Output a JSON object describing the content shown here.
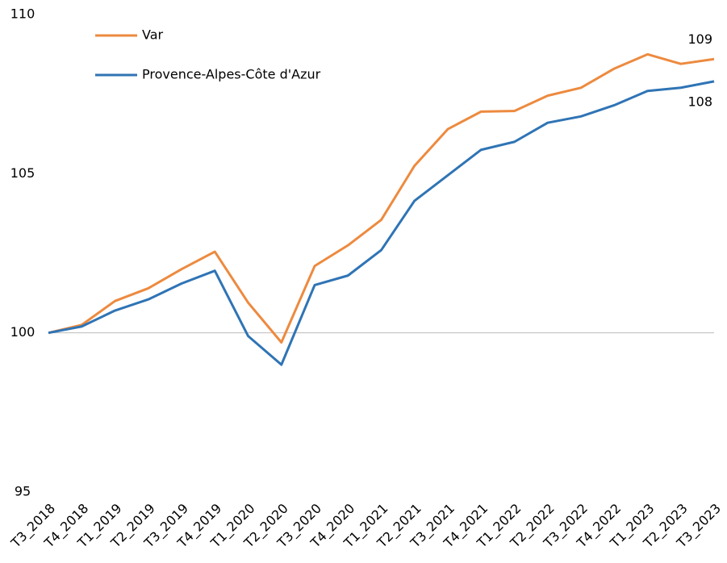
{
  "chart_data": {
    "type": "line",
    "categories": [
      "T3_2018",
      "T4_2018",
      "T1_2019",
      "T2_2019",
      "T3_2019",
      "T4_2019",
      "T1_2020",
      "T2_2020",
      "T3_2020",
      "T4_2020",
      "T1_2021",
      "T2_2021",
      "T3_2021",
      "T4_2021",
      "T1_2022",
      "T2_2022",
      "T3_2022",
      "T4_2022",
      "T1_2023",
      "T2_2023",
      "T3_2023"
    ],
    "series": [
      {
        "name": "Var",
        "color": "#ed8a3f",
        "values": [
          100,
          100.25,
          101.0,
          101.4,
          102.0,
          102.55,
          100.95,
          99.7,
          102.1,
          102.75,
          103.55,
          105.25,
          106.4,
          106.95,
          106.97,
          107.45,
          107.7,
          108.3,
          108.75,
          108.45,
          108.6
        ],
        "value_labels": [
          null,
          null,
          null,
          null,
          null,
          null,
          null,
          null,
          null,
          null,
          null,
          null,
          null,
          null,
          null,
          null,
          null,
          null,
          null,
          null,
          "109"
        ]
      },
      {
        "name": "Provence-Alpes-Côte d'Azur",
        "color": "#2f74b5",
        "values": [
          100,
          100.2,
          100.7,
          101.05,
          101.55,
          101.95,
          99.9,
          99.0,
          101.5,
          101.8,
          102.6,
          104.15,
          104.95,
          105.75,
          106.0,
          106.6,
          106.8,
          107.15,
          107.6,
          107.7,
          107.9
        ],
        "value_labels": [
          null,
          null,
          null,
          null,
          null,
          null,
          null,
          null,
          null,
          null,
          null,
          null,
          null,
          null,
          null,
          null,
          null,
          null,
          null,
          null,
          "108"
        ]
      }
    ],
    "ylim": [
      95,
      110
    ],
    "yticks": [
      95,
      100,
      105,
      110
    ],
    "hline": 100,
    "legend": "top-left"
  }
}
